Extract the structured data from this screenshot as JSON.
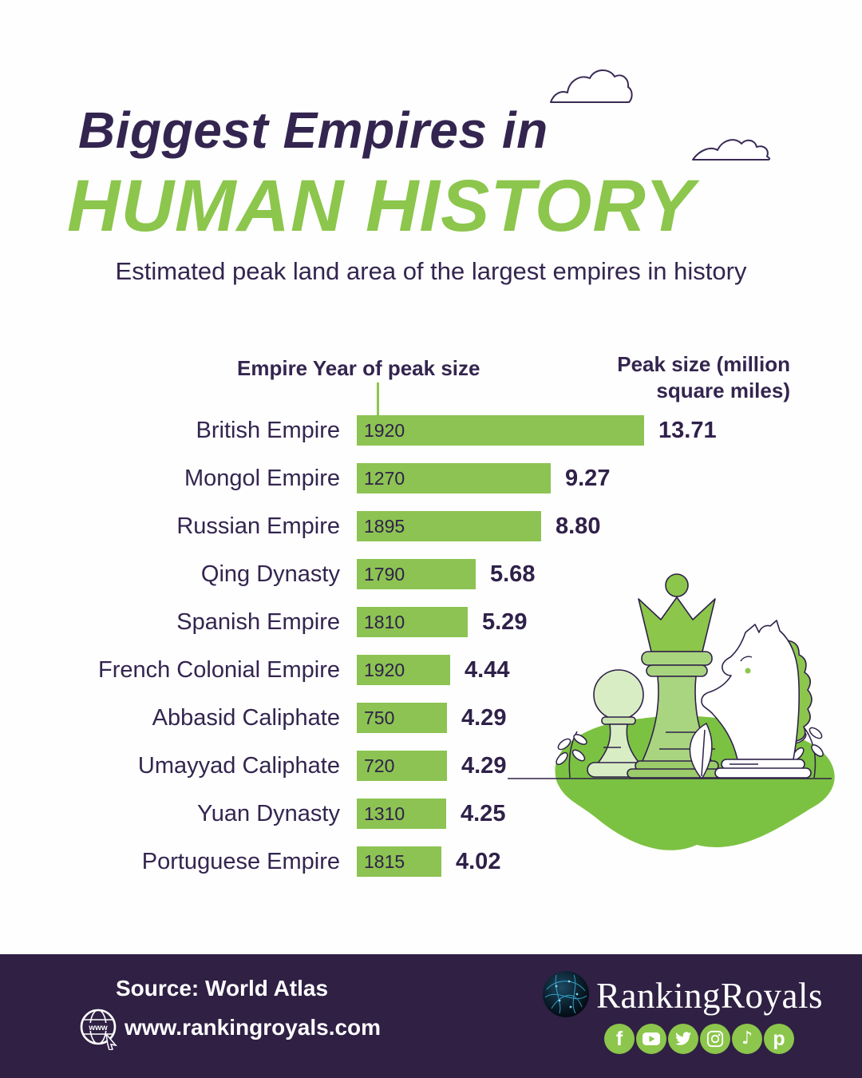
{
  "header": {
    "title_line1": "Biggest Empires in",
    "title_line2": "HUMAN HISTORY",
    "subtitle": "Estimated peak land area of the largest empires in history"
  },
  "chart_data": {
    "type": "bar",
    "orientation": "horizontal",
    "legend_left": "Empire Year of peak size",
    "legend_right": "Peak size (million square miles)",
    "unit": "million square miles",
    "xlim": [
      0,
      13.71
    ],
    "bar_color": "#8cc352",
    "rows": [
      {
        "empire": "British Empire",
        "year": "1920",
        "value": 13.71,
        "value_label": "13.71"
      },
      {
        "empire": "Mongol Empire",
        "year": "1270",
        "value": 9.27,
        "value_label": "9.27"
      },
      {
        "empire": "Russian Empire",
        "year": "1895",
        "value": 8.8,
        "value_label": "8.80"
      },
      {
        "empire": "Qing Dynasty",
        "year": "1790",
        "value": 5.68,
        "value_label": "5.68"
      },
      {
        "empire": "Spanish Empire",
        "year": "1810",
        "value": 5.29,
        "value_label": "5.29"
      },
      {
        "empire": "French Colonial Empire",
        "year": "1920",
        "value": 4.44,
        "value_label": "4.44"
      },
      {
        "empire": "Abbasid Caliphate",
        "year": "750",
        "value": 4.29,
        "value_label": "4.29"
      },
      {
        "empire": "Umayyad Caliphate",
        "year": "720",
        "value": 4.29,
        "value_label": "4.29"
      },
      {
        "empire": "Yuan Dynasty",
        "year": "1310",
        "value": 4.25,
        "value_label": "4.25"
      },
      {
        "empire": "Portuguese Empire",
        "year": "1815",
        "value": 4.02,
        "value_label": "4.02"
      }
    ]
  },
  "footer": {
    "source": "Source: World Atlas",
    "website": "www.rankingroyals.com",
    "brand": "RankingRoyals",
    "www_icon_label": "www",
    "social": [
      {
        "name": "facebook",
        "glyph": "f"
      },
      {
        "name": "youtube",
        "glyph": ""
      },
      {
        "name": "twitter",
        "glyph": ""
      },
      {
        "name": "instagram",
        "glyph": ""
      },
      {
        "name": "tiktok",
        "glyph": "♪"
      },
      {
        "name": "pinterest",
        "glyph": "p"
      }
    ]
  },
  "colors": {
    "accent_green": "#8cc64c",
    "bar_green": "#8cc352",
    "blob_green": "#7cc242",
    "dark_purple": "#33254f",
    "footer_bg": "#2f2044"
  }
}
